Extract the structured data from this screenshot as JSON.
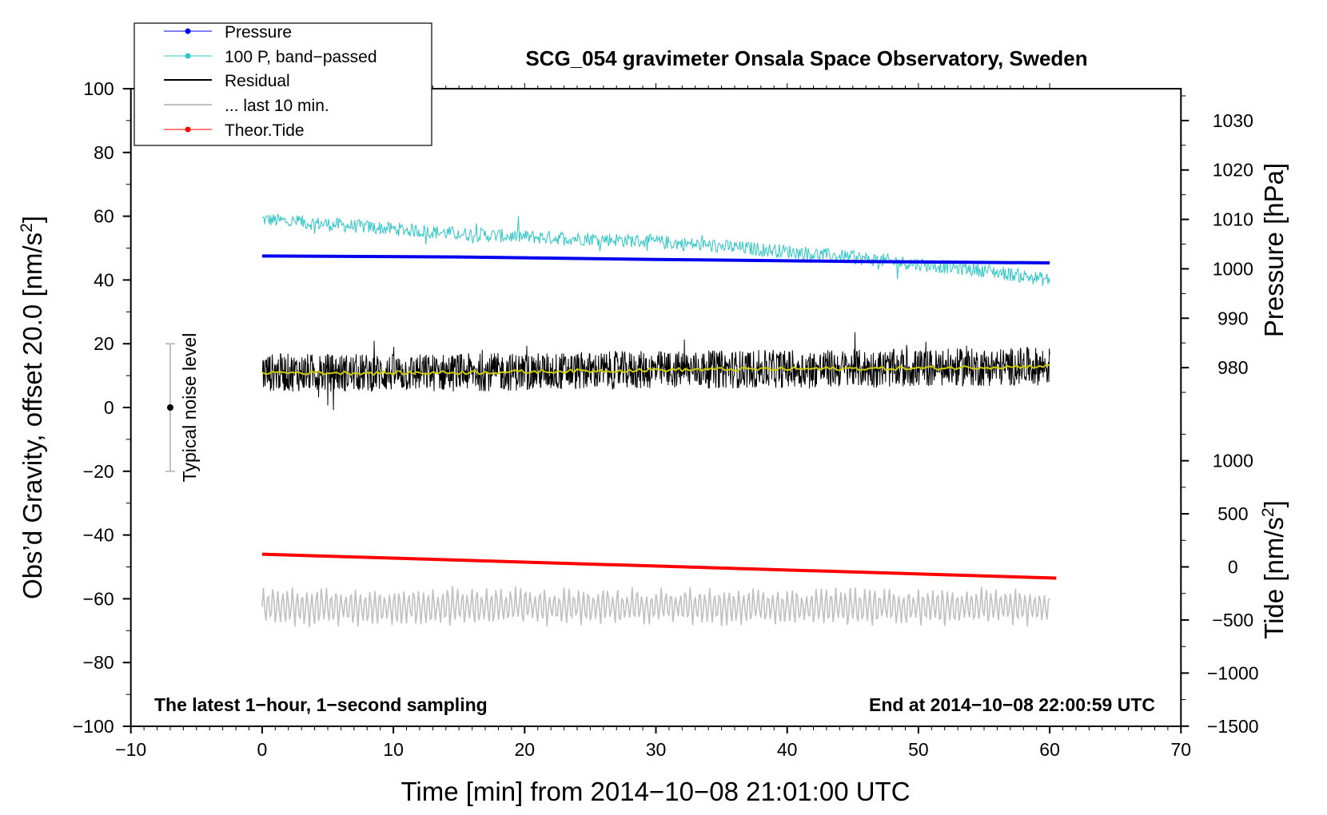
{
  "chart_data": {
    "type": "line",
    "title": "SCG_054 gravimeter Onsala Space Observatory, Sweden",
    "xlabel": "Time [min] from 2014−10−08 21:01:00 UTC",
    "ylabel_left": "Obs’d Gravity, offset 20.0 [nm/s",
    "ylabel_left_sup": "2",
    "ylabel_left_end": "]",
    "ylabel_pressure": "Pressure [hPa]",
    "ylabel_tide": "Tide [nm/s",
    "ylabel_tide_sup": "2",
    "ylabel_tide_end": "]",
    "xlim": [
      -10,
      70
    ],
    "ylim": [
      -100,
      100
    ],
    "x_ticks": [
      -10,
      0,
      10,
      20,
      30,
      40,
      50,
      60,
      70
    ],
    "x_tick_labels": [
      "−10",
      "0",
      "10",
      "20",
      "30",
      "40",
      "50",
      "60",
      "70"
    ],
    "y_ticks": [
      -100,
      -80,
      -60,
      -40,
      -20,
      0,
      20,
      40,
      60,
      80,
      100
    ],
    "y_tick_labels": [
      "−100",
      "−80",
      "−60",
      "−40",
      "−20",
      "0",
      "20",
      "40",
      "60",
      "80",
      "100"
    ],
    "pressure_axis": {
      "ticks": [
        980,
        990,
        1000,
        1010,
        1020,
        1030
      ],
      "tick_labels": [
        "980",
        "990",
        "1000",
        "1010",
        "1020",
        "1030"
      ],
      "gravity_at_980": 12.5,
      "gravity_per_hpa": 1.55
    },
    "tide_axis": {
      "ticks": [
        -1500,
        -1000,
        -500,
        0,
        500,
        1000
      ],
      "tick_labels": [
        "−1500",
        "−1000",
        "−500",
        "0",
        "500",
        "1000"
      ],
      "gravity_at_0": -50.0,
      "gravity_per_unit": 0.0333
    },
    "series": [
      {
        "name": "Pressure",
        "color": "#0000ee",
        "unit": "hPa",
        "x": [
          0,
          15,
          30,
          45,
          60
        ],
        "values": [
          1002.6,
          1002.4,
          1001.9,
          1001.5,
          1001.2
        ]
      },
      {
        "name": "100 P, band−passed",
        "color": "#2ec6c6",
        "unit": "nm/s2",
        "x": [
          0,
          5,
          10,
          15,
          20,
          25,
          30,
          35,
          40,
          45,
          50,
          55,
          60
        ],
        "values": [
          59,
          57.5,
          56,
          54.5,
          53.5,
          53,
          52,
          50.5,
          49,
          47,
          45,
          43,
          40
        ],
        "noise_amplitude": 2.2
      },
      {
        "name": "Residual",
        "color": "#000000",
        "unit": "nm/s2",
        "x": [
          0,
          10,
          20,
          30,
          40,
          50,
          60
        ],
        "values": [
          11,
          10.8,
          11.2,
          11.8,
          12.1,
          12.3,
          13
        ],
        "noise_amplitude": 6
      },
      {
        "name": "... last 10 min.",
        "color": "#c0c0c0",
        "unit": "nm/s2",
        "x": [
          0,
          60
        ],
        "values": [
          -62.5,
          -62.5
        ],
        "noise_amplitude": 6
      },
      {
        "name": "Theor.Tide",
        "color": "#ff0000",
        "unit": "nm/s2",
        "x": [
          0,
          60.5
        ],
        "values": [
          120,
          -105
        ]
      },
      {
        "name": "running mean",
        "color": "#cccc00",
        "unit": "nm/s2",
        "x": [
          0,
          10,
          20,
          30,
          40,
          50,
          60
        ],
        "values": [
          11,
          10.8,
          11.2,
          11.8,
          12.1,
          12.3,
          13
        ]
      }
    ],
    "legend": [
      "Pressure",
      "100 P, band−passed",
      "Residual",
      "... last 10 min.",
      "Theor.Tide"
    ],
    "legend_position": "top-left",
    "noise_bar": {
      "label": "Typical noise level",
      "x": -7,
      "center": 0,
      "half_range": 20
    },
    "annotations": {
      "left": "The latest 1−hour, 1−second sampling",
      "right": "End at 2014−10−08 22:00:59 UTC"
    }
  }
}
